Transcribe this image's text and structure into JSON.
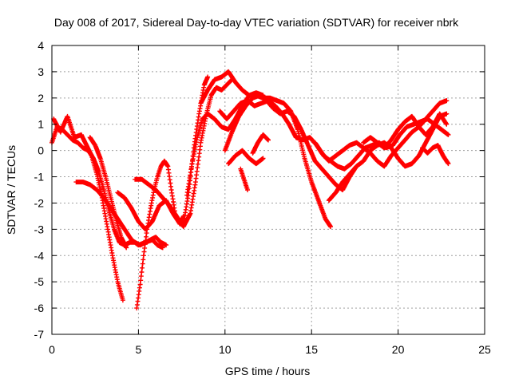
{
  "chart_data": {
    "type": "scatter",
    "title": "Day 008 of 2017, Sidereal Day-to-day VTEC variation (SDTVAR) for receiver nbrk",
    "xlabel": "GPS time / hours",
    "ylabel": "SDTVAR / TECUs",
    "xlim": [
      0,
      25
    ],
    "ylim": [
      -7,
      4
    ],
    "xticks": [
      "0",
      "5",
      "10",
      "15",
      "20",
      "25"
    ],
    "yticks": [
      "-7",
      "-6",
      "-5",
      "-4",
      "-3",
      "-2",
      "-1",
      "0",
      "1",
      "2",
      "3",
      "4"
    ],
    "grid": true,
    "color": "#ff0000",
    "series": [
      {
        "x": [
          0.0,
          0.3,
          0.6,
          0.9,
          1.2,
          1.5,
          1.8,
          2.1,
          2.4,
          2.7,
          3.0,
          3.3,
          3.6,
          3.9,
          4.2,
          4.5,
          4.8,
          5.1,
          5.4,
          5.7,
          6.0,
          6.3,
          6.6
        ],
        "y": [
          0.3,
          0.9,
          0.8,
          0.6,
          0.4,
          0.3,
          0.1,
          0.0,
          -0.3,
          -0.8,
          -1.5,
          -2.3,
          -3.0,
          -3.5,
          -3.6,
          -3.5,
          -3.5,
          -3.6,
          -3.5,
          -3.4,
          -3.3,
          -3.5,
          -3.6
        ]
      },
      {
        "x": [
          0.1,
          0.5,
          0.9,
          1.3,
          1.7,
          2.0,
          2.3,
          2.6,
          2.9,
          3.2,
          3.5,
          3.8,
          4.1
        ],
        "y": [
          1.2,
          0.7,
          1.3,
          0.5,
          0.6,
          0.2,
          -0.2,
          -0.9,
          -1.8,
          -2.9,
          -4.0,
          -5.0,
          -5.7
        ]
      },
      {
        "x": [
          2.2,
          2.5,
          2.8,
          3.1,
          3.4,
          3.7,
          4.0,
          4.3
        ],
        "y": [
          0.5,
          0.2,
          -0.3,
          -1.0,
          -1.8,
          -2.6,
          -3.3,
          -3.7
        ]
      },
      {
        "x": [
          1.4,
          1.8,
          2.2,
          2.6,
          3.0,
          3.4,
          3.8,
          4.2,
          4.6,
          5.0,
          5.4,
          5.8,
          6.1,
          6.4
        ],
        "y": [
          -1.2,
          -1.2,
          -1.3,
          -1.5,
          -1.8,
          -2.2,
          -2.6,
          -3.0,
          -3.4,
          -3.6,
          -3.5,
          -3.4,
          -3.6,
          -3.7
        ]
      },
      {
        "x": [
          3.8,
          4.2,
          4.6,
          5.0,
          5.4,
          5.8,
          6.2,
          6.6,
          7.0,
          7.4,
          7.6
        ],
        "y": [
          -1.6,
          -1.8,
          -2.2,
          -2.7,
          -3.0,
          -2.7,
          -2.1,
          -1.9,
          -2.4,
          -2.8,
          -2.5
        ]
      },
      {
        "x": [
          4.9,
          5.1,
          5.3,
          5.5,
          5.7,
          5.9,
          6.1,
          6.3,
          6.5,
          6.7,
          6.9,
          7.1
        ],
        "y": [
          -6.0,
          -5.1,
          -4.0,
          -3.0,
          -2.2,
          -1.5,
          -1.0,
          -0.6,
          -0.4,
          -0.6,
          -1.5,
          -2.3
        ]
      },
      {
        "x": [
          4.8,
          5.2,
          5.6,
          6.0,
          6.4,
          6.8,
          7.2,
          7.6,
          8.0,
          8.3,
          8.6,
          8.9,
          9.2,
          9.5,
          9.8,
          10.1,
          10.4
        ],
        "y": [
          -1.1,
          -1.1,
          -1.3,
          -1.5,
          -1.8,
          -2.1,
          -2.5,
          -2.9,
          -2.4,
          -1.2,
          0.3,
          1.3,
          2.1,
          2.4,
          2.3,
          2.5,
          2.7
        ]
      },
      {
        "x": [
          7.3,
          7.6,
          7.9,
          8.2,
          8.5,
          8.8,
          9.0
        ],
        "y": [
          -2.6,
          -2.8,
          -1.6,
          0.1,
          1.4,
          2.5,
          2.8
        ]
      },
      {
        "x": [
          7.8,
          8.1,
          8.4,
          8.7,
          9.0,
          9.4,
          9.8,
          10.2,
          10.6,
          11.0,
          11.4,
          11.8,
          12.2
        ],
        "y": [
          -1.7,
          -0.5,
          0.5,
          1.2,
          1.4,
          1.2,
          0.9,
          0.8,
          1.2,
          1.7,
          2.1,
          2.2,
          2.1
        ]
      },
      {
        "x": [
          8.6,
          9.0,
          9.4,
          9.8,
          10.2,
          10.6,
          11.0,
          11.4,
          11.8,
          12.2,
          12.6,
          13.0,
          13.4,
          13.8,
          14.2,
          14.6,
          15.0,
          15.4,
          15.8,
          16.1
        ],
        "y": [
          1.8,
          2.3,
          2.7,
          2.8,
          3.0,
          2.6,
          2.3,
          2.1,
          2.1,
          2.0,
          2.0,
          1.9,
          1.8,
          1.5,
          0.8,
          -0.3,
          -1.2,
          -1.9,
          -2.6,
          -2.9
        ]
      },
      {
        "x": [
          10.0,
          10.4,
          10.8,
          11.2,
          11.6,
          12.0,
          12.4,
          12.8,
          13.2,
          13.6,
          14.0,
          14.4,
          14.8,
          15.2,
          15.6,
          16.0,
          16.4,
          16.8,
          17.2,
          17.6
        ],
        "y": [
          0.0,
          0.7,
          1.3,
          1.7,
          2.0,
          2.1,
          1.9,
          1.6,
          1.4,
          1.5,
          1.3,
          0.8,
          0.2,
          -0.4,
          -0.7,
          -1.0,
          -1.3,
          -1.5,
          -1.0,
          -0.6
        ]
      },
      {
        "x": [
          9.7,
          10.1,
          10.5,
          10.9,
          11.3,
          11.7,
          12.1,
          12.5,
          12.9,
          13.3,
          13.7,
          14.1,
          14.5,
          14.9,
          15.3,
          15.7,
          16.1,
          16.5,
          16.9,
          17.3,
          17.7,
          18.1,
          18.5,
          18.9,
          19.3,
          19.7,
          20.1,
          20.5,
          20.9,
          21.3,
          21.7,
          22.1,
          22.5,
          22.9
        ],
        "y": [
          1.5,
          1.2,
          1.5,
          1.8,
          1.9,
          1.7,
          1.8,
          1.9,
          1.7,
          1.4,
          1.0,
          0.5,
          0.4,
          0.5,
          0.2,
          -0.2,
          -0.4,
          -0.6,
          -0.7,
          -0.5,
          -0.2,
          0.1,
          0.2,
          0.3,
          0.1,
          0.2,
          0.6,
          0.9,
          1.0,
          1.1,
          1.2,
          1.0,
          0.8,
          0.6
        ]
      },
      {
        "x": [
          10.2,
          10.6,
          11.0,
          11.4,
          11.8,
          12.2
        ],
        "y": [
          -0.5,
          -0.2,
          0.0,
          -0.3,
          -0.5,
          -0.3
        ]
      },
      {
        "x": [
          10.9,
          11.1,
          11.3
        ],
        "y": [
          -0.7,
          -1.1,
          -1.5
        ]
      },
      {
        "x": [
          11.6,
          11.9,
          12.2,
          12.5
        ],
        "y": [
          -0.1,
          0.3,
          0.6,
          0.4
        ]
      },
      {
        "x": [
          15.2,
          15.6,
          16.0,
          16.4,
          16.8,
          17.2,
          17.6,
          18.0,
          18.4,
          18.8,
          19.2,
          19.6,
          20.0,
          20.4,
          20.8,
          21.2,
          21.6,
          22.0,
          22.4,
          22.8
        ],
        "y": [
          0.3,
          -0.1,
          -0.4,
          -0.2,
          0.0,
          0.2,
          0.3,
          0.1,
          -0.1,
          -0.4,
          -0.6,
          -0.2,
          0.1,
          0.4,
          0.7,
          0.9,
          1.2,
          1.5,
          1.8,
          1.9
        ]
      },
      {
        "x": [
          16.0,
          16.4,
          16.8,
          17.2,
          17.6,
          18.0,
          18.4,
          18.8,
          19.2,
          19.6,
          20.0,
          20.4,
          20.8,
          21.2,
          21.6,
          22.0,
          22.4,
          22.8
        ],
        "y": [
          -1.9,
          -1.6,
          -1.2,
          -0.9,
          -0.6,
          -0.4,
          0.0,
          0.2,
          0.3,
          0.1,
          -0.3,
          -0.6,
          -0.5,
          -0.2,
          0.3,
          0.8,
          1.3,
          1.4
        ]
      },
      {
        "x": [
          18.0,
          18.4,
          18.8,
          19.2,
          19.6,
          20.0,
          20.4,
          20.8,
          21.2,
          21.6,
          22.0,
          22.4,
          22.8
        ],
        "y": [
          0.3,
          0.5,
          0.3,
          0.1,
          0.4,
          0.8,
          1.1,
          1.3,
          0.9,
          0.6,
          0.9,
          1.4,
          1.0
        ]
      },
      {
        "x": [
          21.4,
          21.7,
          22.0,
          22.3,
          22.6,
          22.9
        ],
        "y": [
          0.1,
          -0.1,
          0.1,
          0.2,
          -0.2,
          -0.5
        ]
      }
    ]
  }
}
